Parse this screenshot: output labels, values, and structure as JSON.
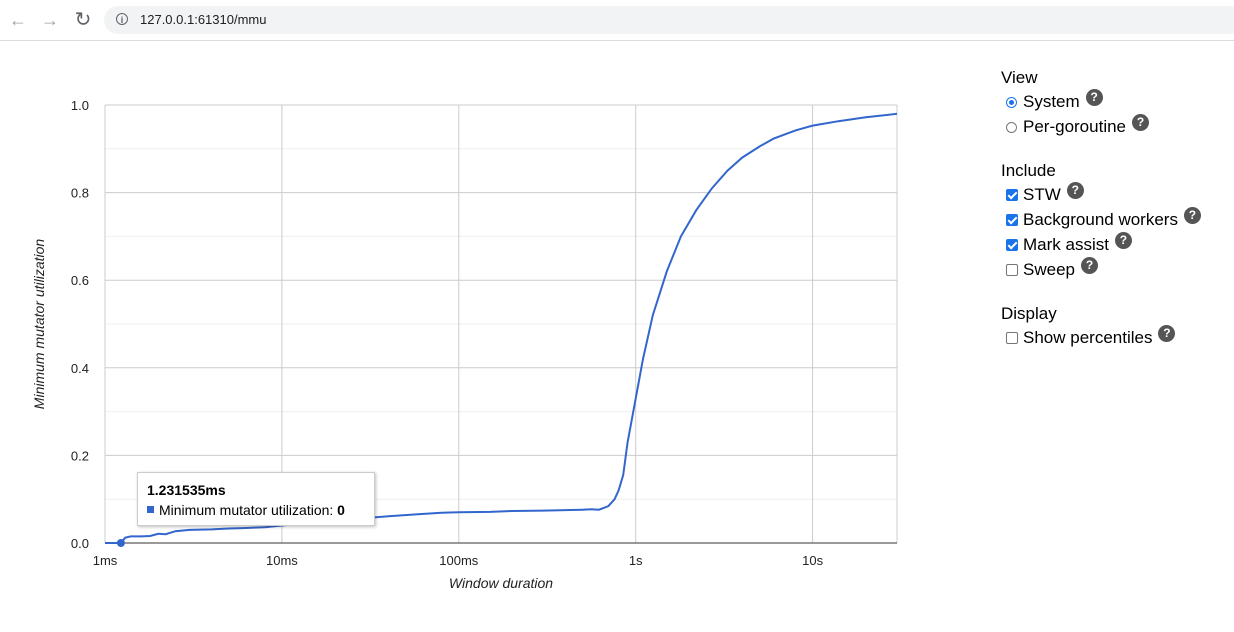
{
  "browser": {
    "url": "127.0.0.1:61310/mmu"
  },
  "icons": {
    "back": "back-arrow-icon",
    "forward": "forward-arrow-icon",
    "reload": "reload-icon",
    "info": "info-icon",
    "help": "help-icon"
  },
  "tooltip": {
    "title": "1.231535ms",
    "label": "Minimum mutator utilization: ",
    "value": "0"
  },
  "panel": {
    "view_title": "View",
    "view_options": [
      {
        "label": "System",
        "selected": true
      },
      {
        "label": "Per-goroutine",
        "selected": false
      }
    ],
    "include_title": "Include",
    "include_options": [
      {
        "label": "STW",
        "checked": true
      },
      {
        "label": "Background workers",
        "checked": true
      },
      {
        "label": "Mark assist",
        "checked": true
      },
      {
        "label": "Sweep",
        "checked": false
      }
    ],
    "display_title": "Display",
    "display_options": [
      {
        "label": "Show percentiles",
        "checked": false
      }
    ]
  },
  "chart_data": {
    "type": "line",
    "xlabel": "Window duration",
    "ylabel": "Minimum mutator utilization",
    "xscale": "log",
    "xlim": [
      0.001,
      30
    ],
    "ylim": [
      0,
      1
    ],
    "x_ticks": [
      {
        "value": 0.001,
        "label": "1ms"
      },
      {
        "value": 0.01,
        "label": "10ms"
      },
      {
        "value": 0.1,
        "label": "100ms"
      },
      {
        "value": 1,
        "label": "1s"
      },
      {
        "value": 10,
        "label": "10s"
      }
    ],
    "y_ticks": [
      {
        "value": 0,
        "label": "0.0"
      },
      {
        "value": 0.2,
        "label": "0.2"
      },
      {
        "value": 0.4,
        "label": "0.4"
      },
      {
        "value": 0.6,
        "label": "0.6"
      },
      {
        "value": 0.8,
        "label": "0.8"
      },
      {
        "value": 1.0,
        "label": "1.0"
      }
    ],
    "grid": true,
    "color": "#3366cc",
    "series": [
      {
        "x": [
          0.001,
          0.00123,
          0.0013,
          0.0014,
          0.0016,
          0.0018,
          0.002,
          0.0022,
          0.0025,
          0.003,
          0.004,
          0.005,
          0.006,
          0.008,
          0.01,
          0.015,
          0.02,
          0.03,
          0.04,
          0.06,
          0.08,
          0.1,
          0.15,
          0.2,
          0.3,
          0.4,
          0.5,
          0.56,
          0.62,
          0.7,
          0.76,
          0.8,
          0.85,
          0.9,
          1.0,
          1.1,
          1.25,
          1.5,
          1.8,
          2.2,
          2.7,
          3.3,
          4,
          5,
          6,
          8,
          10,
          14,
          20,
          30
        ],
        "y": [
          0,
          0,
          0.012,
          0.015,
          0.015,
          0.016,
          0.021,
          0.02,
          0.027,
          0.03,
          0.031,
          0.033,
          0.034,
          0.036,
          0.04,
          0.047,
          0.052,
          0.057,
          0.061,
          0.066,
          0.069,
          0.07,
          0.071,
          0.073,
          0.074,
          0.075,
          0.076,
          0.077,
          0.076,
          0.084,
          0.1,
          0.12,
          0.155,
          0.23,
          0.33,
          0.42,
          0.52,
          0.62,
          0.7,
          0.76,
          0.81,
          0.85,
          0.88,
          0.905,
          0.923,
          0.942,
          0.953,
          0.963,
          0.972,
          0.98
        ]
      }
    ]
  }
}
